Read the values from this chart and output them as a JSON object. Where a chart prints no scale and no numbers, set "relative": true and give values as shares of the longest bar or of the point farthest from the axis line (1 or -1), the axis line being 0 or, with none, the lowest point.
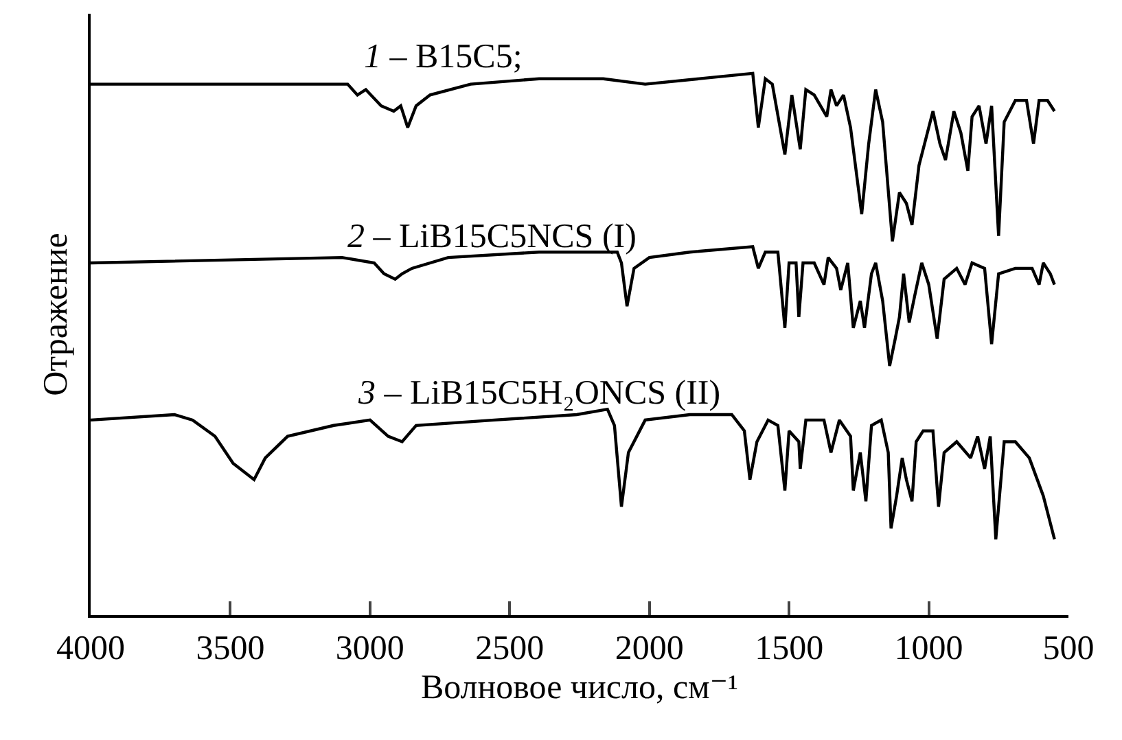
{
  "chart_data": {
    "type": "line",
    "relative": true,
    "xlabel": "Волновое число, см⁻¹",
    "ylabel": "Отражение",
    "xlim": [
      4000,
      500
    ],
    "xticks": [
      4000,
      3500,
      3000,
      2500,
      2000,
      1500,
      1000,
      500
    ],
    "grid": false,
    "legend": false,
    "marker": "none",
    "line_style": "solid",
    "series": [
      {
        "name": "1 – B15C5;",
        "color": "#000000",
        "x": [
          4000,
          3700,
          3080,
          3045,
          3015,
          2960,
          2915,
          2890,
          2865,
          2835,
          2785,
          2640,
          2395,
          2165,
          2015,
          1630,
          1610,
          1585,
          1560,
          1515,
          1490,
          1460,
          1440,
          1410,
          1365,
          1350,
          1330,
          1305,
          1280,
          1265,
          1240,
          1215,
          1190,
          1165,
          1130,
          1105,
          1080,
          1060,
          1035,
          1010,
          985,
          960,
          940,
          910,
          885,
          860,
          845,
          820,
          795,
          775,
          750,
          730,
          690,
          650,
          625,
          605,
          575,
          550
        ],
        "values": [
          0.98,
          0.98,
          0.98,
          0.96,
          0.97,
          0.94,
          0.93,
          0.94,
          0.9,
          0.94,
          0.96,
          0.98,
          0.99,
          0.99,
          0.98,
          1,
          0.9,
          0.99,
          0.98,
          0.85,
          0.96,
          0.86,
          0.97,
          0.96,
          0.92,
          0.97,
          0.94,
          0.96,
          0.9,
          0.84,
          0.74,
          0.87,
          0.97,
          0.91,
          0.69,
          0.78,
          0.76,
          0.72,
          0.83,
          0.88,
          0.93,
          0.87,
          0.84,
          0.93,
          0.89,
          0.82,
          0.92,
          0.94,
          0.87,
          0.94,
          0.7,
          0.91,
          0.95,
          0.95,
          0.87,
          0.95,
          0.95,
          0.93
        ]
      },
      {
        "name": "2 – LiB15C5NCS (I)",
        "color": "#000000",
        "x": [
          4000,
          3100,
          2985,
          2950,
          2910,
          2885,
          2850,
          2720,
          2395,
          2165,
          2260,
          2115,
          2100,
          2080,
          2055,
          2000,
          1855,
          1630,
          1610,
          1585,
          1540,
          1515,
          1500,
          1475,
          1465,
          1450,
          1410,
          1375,
          1360,
          1330,
          1315,
          1290,
          1270,
          1245,
          1230,
          1205,
          1190,
          1165,
          1140,
          1120,
          1105,
          1090,
          1070,
          1050,
          1025,
          1000,
          970,
          945,
          900,
          870,
          845,
          800,
          775,
          750,
          690,
          630,
          605,
          590,
          565,
          550
        ],
        "values": [
          0.65,
          0.66,
          0.65,
          0.63,
          0.62,
          0.63,
          0.64,
          0.66,
          0.67,
          0.67,
          0.67,
          0.67,
          0.65,
          0.57,
          0.64,
          0.66,
          0.67,
          0.68,
          0.64,
          0.67,
          0.67,
          0.53,
          0.65,
          0.65,
          0.55,
          0.65,
          0.65,
          0.61,
          0.66,
          0.64,
          0.6,
          0.65,
          0.53,
          0.58,
          0.53,
          0.63,
          0.65,
          0.58,
          0.46,
          0.51,
          0.55,
          0.63,
          0.54,
          0.59,
          0.65,
          0.61,
          0.51,
          0.62,
          0.64,
          0.61,
          0.65,
          0.64,
          0.5,
          0.63,
          0.64,
          0.64,
          0.61,
          0.65,
          0.63,
          0.61
        ]
      },
      {
        "name": "3 – LiB15C5H₂ONCS (II)",
        "color": "#000000",
        "x": [
          4000,
          3700,
          3635,
          3555,
          3490,
          3415,
          3375,
          3295,
          3130,
          3000,
          2935,
          2885,
          2835,
          2555,
          2260,
          2150,
          2125,
          2100,
          2075,
          2015,
          1855,
          1705,
          1660,
          1640,
          1615,
          1575,
          1540,
          1515,
          1500,
          1465,
          1460,
          1440,
          1375,
          1350,
          1320,
          1280,
          1270,
          1245,
          1225,
          1205,
          1170,
          1145,
          1135,
          1115,
          1095,
          1080,
          1060,
          1045,
          1020,
          985,
          965,
          945,
          900,
          850,
          825,
          800,
          780,
          760,
          730,
          690,
          640,
          590,
          550
        ],
        "values": [
          0.36,
          0.37,
          0.36,
          0.33,
          0.28,
          0.25,
          0.29,
          0.33,
          0.35,
          0.36,
          0.33,
          0.32,
          0.35,
          0.36,
          0.37,
          0.38,
          0.35,
          0.2,
          0.3,
          0.36,
          0.37,
          0.37,
          0.34,
          0.25,
          0.32,
          0.36,
          0.35,
          0.23,
          0.34,
          0.32,
          0.27,
          0.36,
          0.36,
          0.3,
          0.36,
          0.33,
          0.23,
          0.3,
          0.21,
          0.35,
          0.36,
          0.3,
          0.16,
          0.22,
          0.29,
          0.25,
          0.21,
          0.32,
          0.34,
          0.34,
          0.2,
          0.3,
          0.32,
          0.29,
          0.33,
          0.27,
          0.33,
          0.14,
          0.32,
          0.32,
          0.29,
          0.22,
          0.14
        ]
      }
    ]
  }
}
